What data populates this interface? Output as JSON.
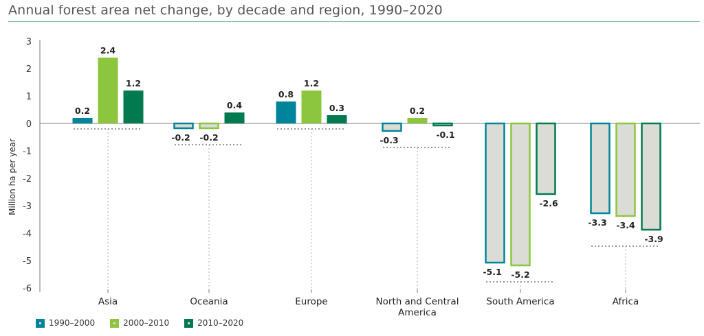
{
  "title": "Annual forest area net change, by decade and region, 1990–2020",
  "colors": {
    "series_1990_2000": "#00849b",
    "series_2000_2010": "#8cc63f",
    "series_2010_2020": "#007a4e",
    "negative_fill": "#dcdcd6",
    "axis": "#7a7a7a",
    "grid": "#d0d0d0"
  },
  "legend": [
    {
      "label": "1990–2000",
      "color": "#00849b"
    },
    {
      "label": "2000–2010",
      "color": "#8cc63f"
    },
    {
      "label": "2010–2020",
      "color": "#007a4e"
    }
  ],
  "chart_data": {
    "type": "bar",
    "title": "Annual forest area net change, by decade and region, 1990–2020",
    "ylabel": "Million ha per year",
    "xlabel": "",
    "ylim": [
      -6,
      3
    ],
    "yticks": [
      3,
      2,
      1,
      0,
      -1,
      -2,
      -3,
      -4,
      -5,
      -6
    ],
    "categories": [
      "Asia",
      "Oceania",
      "Europe",
      "North and Central America",
      "South America",
      "Africa"
    ],
    "category_lines": [
      [
        "Asia"
      ],
      [
        "Oceania"
      ],
      [
        "Europe"
      ],
      [
        "North and Central",
        "America"
      ],
      [
        "South America"
      ],
      [
        "Africa"
      ]
    ],
    "series": [
      {
        "name": "1990–2000",
        "values": [
          0.2,
          -0.2,
          0.8,
          -0.3,
          -5.1,
          -3.3
        ]
      },
      {
        "name": "2000–2010",
        "values": [
          2.4,
          -0.2,
          1.2,
          0.2,
          -5.2,
          -3.4
        ]
      },
      {
        "name": "2010–2020",
        "values": [
          1.2,
          0.4,
          0.3,
          -0.1,
          -2.6,
          -3.9
        ]
      }
    ],
    "legend_position": "bottom-left",
    "grid": false
  }
}
